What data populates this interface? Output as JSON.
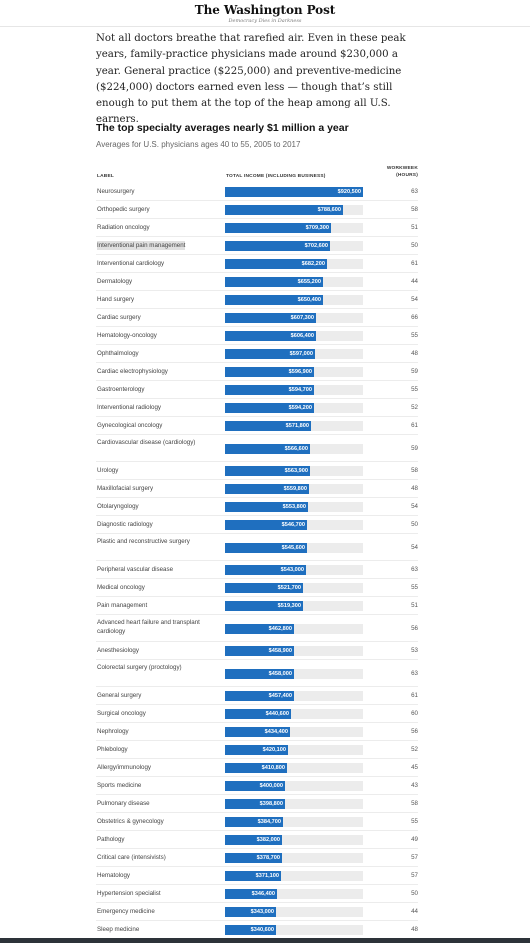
{
  "masthead": {
    "logo": "The Washington Post",
    "tagline": "Democracy Dies in Darkness"
  },
  "intro": "Not all doctors breathe that rarefied air. Even in these peak years, family-practice physicians made around $230,000 a year. General practice ($225,000) and preventive-medicine ($224,000) doctors earned even less — though that’s still enough to put them at the top of the heap among all U.S. earners.",
  "chart": {
    "title": "The top specialty averages nearly $1 million a year",
    "subtitle": "Averages for U.S. physicians ages 40 to 55, 2005 to 2017",
    "col_label": "LABEL",
    "col_income": "TOTAL INCOME (INCLUDING BUSINESS)",
    "col_hours_1": "WORKWEEK",
    "col_hours_2": "(HOURS)",
    "bar_color": "#1f6fbf",
    "highlight_row": "Interventional pain management"
  },
  "chart_data": {
    "type": "bar",
    "orientation": "horizontal",
    "title": "The top specialty averages nearly $1 million a year",
    "subtitle": "Averages for U.S. physicians ages 40 to 55, 2005 to 2017",
    "xlim": [
      0,
      920500
    ],
    "rows": [
      {
        "label": "Neurosurgery",
        "display": "$920,500",
        "value": 920500,
        "hours": "63"
      },
      {
        "label": "Orthopedic surgery",
        "display": "$788,600",
        "value": 788600,
        "hours": "58"
      },
      {
        "label": "Radiation oncology",
        "display": "$709,300",
        "value": 709300,
        "hours": "51"
      },
      {
        "label": "Interventional pain management",
        "display": "$702,600",
        "value": 702600,
        "hours": "50"
      },
      {
        "label": "Interventional cardiology",
        "display": "$682,200",
        "value": 682200,
        "hours": "61"
      },
      {
        "label": "Dermatology",
        "display": "$655,200",
        "value": 655200,
        "hours": "44"
      },
      {
        "label": "Hand surgery",
        "display": "$650,400",
        "value": 650400,
        "hours": "54"
      },
      {
        "label": "Cardiac surgery",
        "display": "$607,300",
        "value": 607300,
        "hours": "66"
      },
      {
        "label": "Hematology-oncology",
        "display": "$606,400",
        "value": 606400,
        "hours": "55"
      },
      {
        "label": "Ophthalmology",
        "display": "$597,000",
        "value": 597000,
        "hours": "48"
      },
      {
        "label": "Cardiac electrophysiology",
        "display": "$596,900",
        "value": 596900,
        "hours": "59"
      },
      {
        "label": "Gastroenterology",
        "display": "$594,700",
        "value": 594700,
        "hours": "55"
      },
      {
        "label": "Interventional radiology",
        "display": "$594,200",
        "value": 594200,
        "hours": "52"
      },
      {
        "label": "Gynecological oncology",
        "display": "$571,800",
        "value": 571800,
        "hours": "61"
      },
      {
        "label": "Cardiovascular disease (cardiology)",
        "display": "$566,600",
        "value": 566600,
        "hours": "59"
      },
      {
        "label": "Urology",
        "display": "$563,900",
        "value": 563900,
        "hours": "58"
      },
      {
        "label": "Maxillofacial surgery",
        "display": "$559,800",
        "value": 559800,
        "hours": "48"
      },
      {
        "label": "Otolaryngology",
        "display": "$553,800",
        "value": 553800,
        "hours": "54"
      },
      {
        "label": "Diagnostic radiology",
        "display": "$546,700",
        "value": 546700,
        "hours": "50"
      },
      {
        "label": "Plastic and reconstructive surgery",
        "display": "$545,600",
        "value": 545600,
        "hours": "54"
      },
      {
        "label": "Peripheral vascular disease",
        "display": "$543,000",
        "value": 543000,
        "hours": "63"
      },
      {
        "label": "Medical oncology",
        "display": "$521,700",
        "value": 521700,
        "hours": "55"
      },
      {
        "label": "Pain management",
        "display": "$519,300",
        "value": 519300,
        "hours": "51"
      },
      {
        "label": "Advanced heart failure and transplant cardiology",
        "display": "$462,800",
        "value": 462800,
        "hours": "56"
      },
      {
        "label": "Anesthesiology",
        "display": "$458,900",
        "value": 458900,
        "hours": "53"
      },
      {
        "label": "Colorectal surgery (proctology)",
        "display": "$458,000",
        "value": 458000,
        "hours": "63"
      },
      {
        "label": "General surgery",
        "display": "$457,400",
        "value": 457400,
        "hours": "61"
      },
      {
        "label": "Surgical oncology",
        "display": "$440,600",
        "value": 440600,
        "hours": "60"
      },
      {
        "label": "Nephrology",
        "display": "$434,400",
        "value": 434400,
        "hours": "56"
      },
      {
        "label": "Phlebology",
        "display": "$420,100",
        "value": 420100,
        "hours": "52"
      },
      {
        "label": "Allergy/immunology",
        "display": "$410,800",
        "value": 410800,
        "hours": "45"
      },
      {
        "label": "Sports medicine",
        "display": "$400,000",
        "value": 400000,
        "hours": "43"
      },
      {
        "label": "Pulmonary disease",
        "display": "$398,800",
        "value": 398800,
        "hours": "58"
      },
      {
        "label": "Obstetrics & gynecology",
        "display": "$384,700",
        "value": 384700,
        "hours": "55"
      },
      {
        "label": "Pathology",
        "display": "$382,000",
        "value": 382000,
        "hours": "49"
      },
      {
        "label": "Critical care (intensivists)",
        "display": "$378,700",
        "value": 378700,
        "hours": "57"
      },
      {
        "label": "Hematology",
        "display": "$371,100",
        "value": 371100,
        "hours": "57"
      },
      {
        "label": "Hypertension specialist",
        "display": "$346,400",
        "value": 346400,
        "hours": "50"
      },
      {
        "label": "Emergency medicine",
        "display": "$343,000",
        "value": 343000,
        "hours": "44"
      },
      {
        "label": "Sleep medicine",
        "display": "$340,600",
        "value": 340600,
        "hours": "48"
      }
    ]
  }
}
